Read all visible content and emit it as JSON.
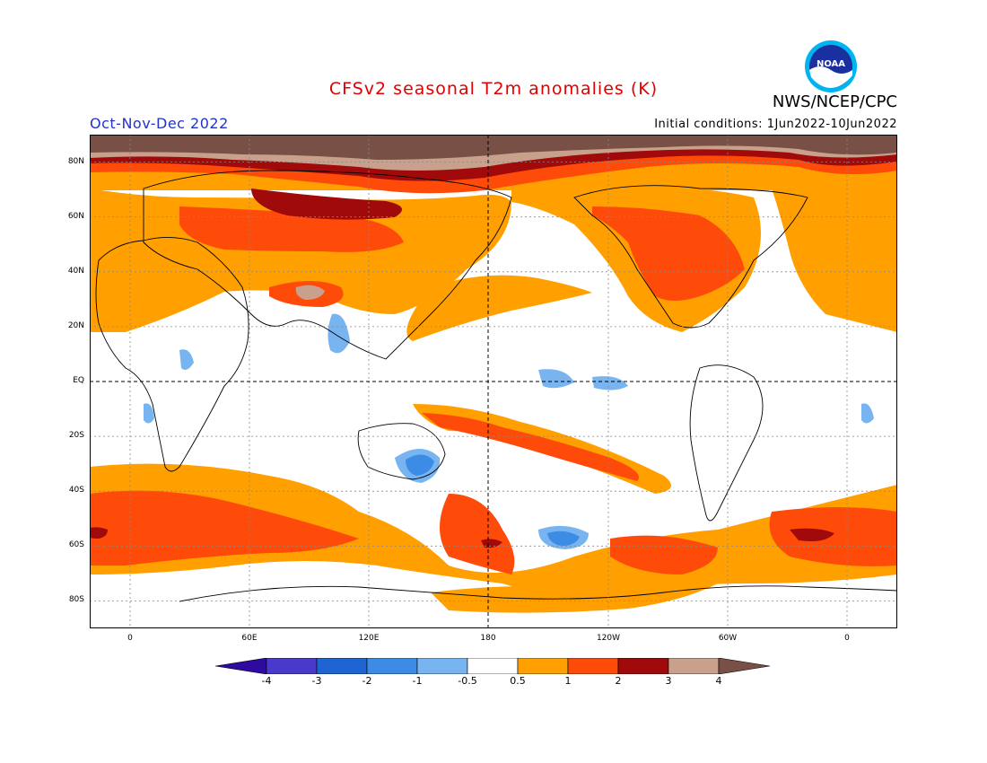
{
  "header": {
    "title": "CFSv2 seasonal T2m anomalies (K)",
    "agency": "NWS/NCEP/CPC",
    "season": "Oct-Nov-Dec 2022",
    "initial_conditions": "Initial conditions: 1Jun2022-10Jun2022",
    "logo_text": "NOAA"
  },
  "axes": {
    "lat_labels": [
      "80N",
      "60N",
      "40N",
      "20N",
      "EQ",
      "20S",
      "40S",
      "60S",
      "80S"
    ],
    "lon_labels": [
      "0",
      "60E",
      "120E",
      "180",
      "120W",
      "60W",
      "0"
    ]
  },
  "colorbar": {
    "labels": [
      "-4",
      "-3",
      "-2",
      "-1",
      "-0.5",
      "0.5",
      "1",
      "2",
      "3",
      "4"
    ],
    "colors": [
      "#2e0aa0",
      "#4a3acb",
      "#1e64d2",
      "#3c8ce6",
      "#78b4f0",
      "#ffffff",
      "#ffa000",
      "#ff4b0a",
      "#a00a0a",
      "#c8a08c",
      "#785046"
    ]
  },
  "colors": {
    "title": "#e00000",
    "season": "#2233cc",
    "neutral": "#ffffff",
    "warm_05_1": "#ffa000",
    "warm_1_2": "#ff4b0a",
    "warm_2_3": "#a00a0a",
    "warm_3_4": "#c8a08c",
    "warm_gt4": "#785046",
    "cool_05_1": "#78b4f0",
    "cool_1_2": "#3c8ce6"
  }
}
